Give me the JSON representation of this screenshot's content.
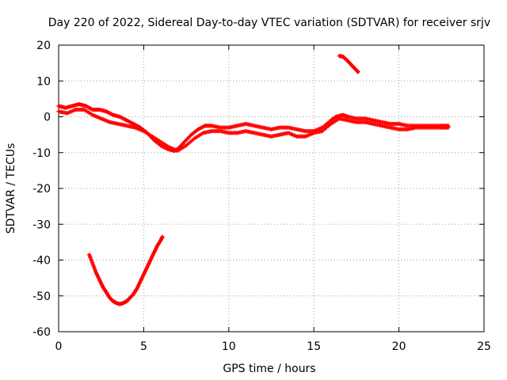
{
  "chart_data": {
    "type": "scatter",
    "title": "Day 220 of 2022, Sidereal Day-to-day VTEC variation (SDTVAR) for receiver srjv",
    "xlabel": "GPS time / hours",
    "ylabel": "SDTVAR / TECUs",
    "xlim": [
      0,
      25
    ],
    "ylim": [
      -60,
      20
    ],
    "xticks": [
      0,
      5,
      10,
      15,
      20,
      25
    ],
    "yticks": [
      -60,
      -50,
      -40,
      -30,
      -20,
      -10,
      0,
      10,
      20
    ],
    "grid": true,
    "legend": "none",
    "marker_color": "#ff0000",
    "series": [
      {
        "name": "main-trace-upper",
        "x": [
          0.0,
          0.4,
          0.8,
          1.2,
          1.6,
          2.0,
          2.4,
          2.8,
          3.2,
          3.6,
          4.0,
          4.4,
          4.8,
          5.2,
          5.6,
          6.0,
          6.4,
          6.8,
          7.0,
          7.4,
          7.8,
          8.2,
          8.6,
          9.0,
          9.5,
          10.0,
          10.5,
          11.0,
          11.5,
          12.0,
          12.5,
          13.0,
          13.5,
          14.0,
          14.5,
          15.0,
          15.5,
          16.0,
          16.3,
          16.7,
          17.0,
          17.5,
          18.0,
          18.5,
          19.0,
          19.5,
          20.0,
          20.5,
          21.0,
          21.5,
          22.0,
          22.5,
          22.9
        ],
        "y": [
          3,
          2.5,
          3,
          3.5,
          3,
          2,
          2,
          1.5,
          0.5,
          0,
          -1,
          -2,
          -3,
          -4.5,
          -6.5,
          -8,
          -9,
          -9.5,
          -9,
          -7,
          -5,
          -3.5,
          -2.5,
          -2.5,
          -3,
          -3,
          -2.5,
          -2,
          -2.5,
          -3,
          -3.5,
          -3,
          -3,
          -3.5,
          -4,
          -4,
          -3,
          -1,
          0,
          0.5,
          0,
          -0.5,
          -0.5,
          -1,
          -1.5,
          -2,
          -2,
          -2.5,
          -2.5,
          -2.5,
          -2.5,
          -2.5,
          -2.5
        ]
      },
      {
        "name": "main-trace-lower",
        "x": [
          0.0,
          0.5,
          1.0,
          1.5,
          2.0,
          2.5,
          3.0,
          3.5,
          4.0,
          4.5,
          5.0,
          5.5,
          6.0,
          6.5,
          7.0,
          7.5,
          8.0,
          8.5,
          9.0,
          9.5,
          10.0,
          10.5,
          11.0,
          11.5,
          12.0,
          12.5,
          13.0,
          13.5,
          14.0,
          14.5,
          15.0,
          15.5,
          16.0,
          16.5,
          17.0,
          17.5,
          18.0,
          18.5,
          19.0,
          19.5,
          20.0,
          20.5,
          21.0,
          21.5,
          22.0,
          22.5,
          22.9
        ],
        "y": [
          1.5,
          1,
          2,
          2,
          0.5,
          -0.5,
          -1.5,
          -2,
          -2.5,
          -3,
          -4,
          -5.5,
          -7,
          -8.5,
          -9.5,
          -8,
          -6,
          -4.5,
          -4,
          -4,
          -4.5,
          -4.5,
          -4,
          -4.5,
          -5,
          -5.5,
          -5,
          -4.5,
          -5.5,
          -5.5,
          -4.5,
          -4,
          -2,
          -0.5,
          -1,
          -1.5,
          -1.5,
          -2,
          -2.5,
          -3,
          -3.5,
          -3.5,
          -3,
          -3,
          -3,
          -3,
          -3
        ]
      },
      {
        "name": "short-arc-upper-right",
        "x": [
          16.5,
          16.7,
          16.9,
          17.1,
          17.3,
          17.5,
          17.6
        ],
        "y": [
          17,
          16.8,
          16,
          15,
          14,
          13,
          12.5
        ]
      },
      {
        "name": "deep-dip-arc",
        "x": [
          1.8,
          2.0,
          2.2,
          2.4,
          2.6,
          2.8,
          3.0,
          3.2,
          3.4,
          3.6,
          3.8,
          4.0,
          4.2,
          4.4,
          4.6,
          4.8,
          5.0,
          5.2,
          5.4,
          5.6,
          5.8,
          6.0,
          6.1
        ],
        "y": [
          -38.5,
          -41,
          -43.5,
          -45.5,
          -47.5,
          -49,
          -50.5,
          -51.5,
          -52,
          -52.3,
          -52,
          -51.5,
          -50.5,
          -49.5,
          -48,
          -46,
          -44,
          -42,
          -40,
          -38,
          -36,
          -34.5,
          -33.5
        ]
      }
    ]
  }
}
